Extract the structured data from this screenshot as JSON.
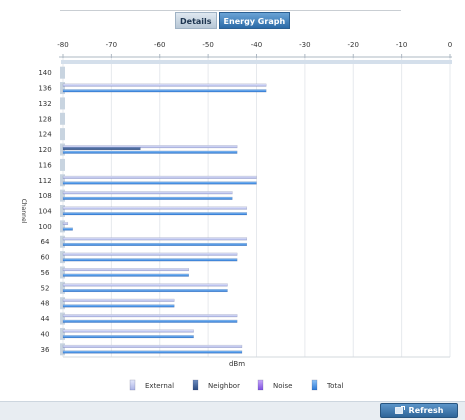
{
  "tabs": [
    {
      "label": "Details"
    },
    {
      "label": "Energy Graph"
    }
  ],
  "refresh_label": "Refresh",
  "colors": {
    "external": "#c3c9f0",
    "neighbor": "#3b5d96",
    "noise": "#9b6ff0",
    "total": "#3c8ee8"
  },
  "chart_data": {
    "type": "bar",
    "orientation": "horizontal",
    "xlabel": "dBm",
    "ylabel": "Channel",
    "xlim": [
      -80,
      0
    ],
    "xticks": [
      "-80",
      "-70",
      "-60",
      "-50",
      "-40",
      "-30",
      "-20",
      "-10",
      "0"
    ],
    "grid": true,
    "legend_position": "bottom",
    "categories": [
      "140",
      "136",
      "132",
      "128",
      "124",
      "120",
      "116",
      "112",
      "108",
      "104",
      "100",
      "64",
      "60",
      "56",
      "52",
      "48",
      "44",
      "40",
      "36"
    ],
    "series": [
      {
        "name": "External",
        "values": [
          null,
          -38,
          null,
          null,
          null,
          -44,
          null,
          -40,
          -45,
          -42,
          -79,
          -42,
          -44,
          -54,
          -46,
          -57,
          -44,
          -53,
          -43
        ]
      },
      {
        "name": "Neighbor",
        "values": [
          null,
          null,
          null,
          null,
          null,
          -64,
          null,
          null,
          null,
          null,
          null,
          null,
          null,
          null,
          null,
          null,
          null,
          null,
          null
        ]
      },
      {
        "name": "Noise",
        "values": [
          null,
          null,
          null,
          null,
          null,
          null,
          null,
          null,
          null,
          null,
          null,
          null,
          null,
          null,
          null,
          null,
          null,
          null,
          null
        ]
      },
      {
        "name": "Total",
        "values": [
          null,
          -38,
          null,
          null,
          null,
          -44,
          null,
          -40,
          -45,
          -42,
          -78,
          -42,
          -44,
          -54,
          -46,
          -57,
          -44,
          -53,
          -43
        ]
      }
    ]
  }
}
